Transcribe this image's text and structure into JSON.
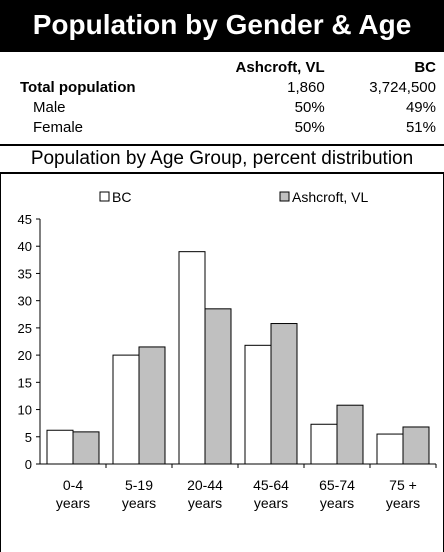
{
  "header": {
    "title": "Population by Gender & Age"
  },
  "table": {
    "columns": [
      "Ashcroft, VL",
      "BC"
    ],
    "rows": [
      {
        "label": "Total population",
        "values": [
          "1,860",
          "3,724,500"
        ]
      },
      {
        "label": "Male",
        "values": [
          "50%",
          "49%"
        ]
      },
      {
        "label": "Female",
        "values": [
          "50%",
          "51%"
        ]
      }
    ]
  },
  "section": {
    "title": "Population by Age Group, percent distribution"
  },
  "chart_data": {
    "type": "bar",
    "categories": [
      [
        "0-4",
        "years"
      ],
      [
        "5-19",
        "years"
      ],
      [
        "20-44",
        "years"
      ],
      [
        "45-64",
        "years"
      ],
      [
        "65-74",
        "years"
      ],
      [
        "75 +",
        "years"
      ]
    ],
    "series": [
      {
        "name": "BC",
        "color": "#ffffff",
        "values": [
          6.2,
          20.0,
          39.0,
          21.8,
          7.3,
          5.5
        ]
      },
      {
        "name": "Ashcroft, VL",
        "color": "#c0c0c0",
        "values": [
          5.9,
          21.5,
          28.5,
          25.8,
          10.8,
          6.8
        ]
      }
    ],
    "ylim": [
      0,
      45
    ],
    "yticks": [
      0,
      5,
      10,
      15,
      20,
      25,
      30,
      35,
      40,
      45
    ],
    "grid": false,
    "legend": "top"
  }
}
